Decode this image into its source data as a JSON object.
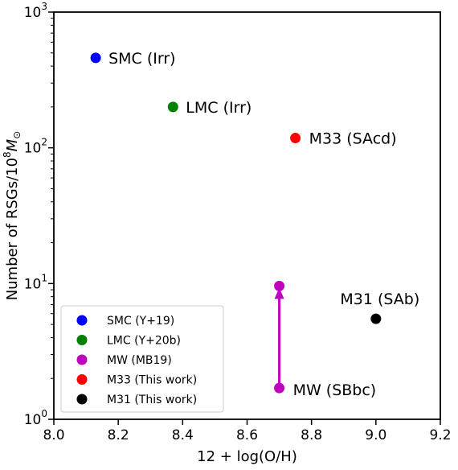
{
  "chart_data": {
    "type": "scatter",
    "xlabel": "12 + log(O/H)",
    "ylabel": "Number of RSGs/10^8 M_sun",
    "ylabel_parts": {
      "main": "Number of RSGs/10",
      "exp": "8",
      "unit": "M",
      "unit_sub": "⊙"
    },
    "xlim": [
      8.0,
      9.2
    ],
    "ylim": [
      1,
      1000
    ],
    "yscale": "log",
    "grid": false,
    "legend_position": "lower-left",
    "x_ticks": [
      "8.0",
      "8.2",
      "8.4",
      "8.6",
      "8.8",
      "9.0",
      "9.2"
    ],
    "y_ticks": [
      {
        "value": 1,
        "base": "10",
        "exp": "0"
      },
      {
        "value": 10,
        "base": "10",
        "exp": "1"
      },
      {
        "value": 100,
        "base": "10",
        "exp": "2"
      },
      {
        "value": 1000,
        "base": "10",
        "exp": "3"
      }
    ],
    "series": [
      {
        "name": "SMC (Y+19)",
        "color": "#0000ff",
        "points": [
          {
            "x": 8.13,
            "y": 460,
            "label": "SMC (Irr)"
          }
        ]
      },
      {
        "name": "LMC (Y+20b)",
        "color": "#008000",
        "points": [
          {
            "x": 8.37,
            "y": 200,
            "label": "LMC (Irr)"
          }
        ]
      },
      {
        "name": "MW (MB19)",
        "color": "#bf00bf",
        "points": [
          {
            "x": 8.7,
            "y": 9.6,
            "label": ""
          },
          {
            "x": 8.7,
            "y": 1.7,
            "label": "MW (SBbc)"
          }
        ]
      },
      {
        "name": "M33 (This work)",
        "color": "#ff0000",
        "points": [
          {
            "x": 8.75,
            "y": 118,
            "label": "M33 (SAcd)"
          }
        ]
      },
      {
        "name": "M31 (This work)",
        "color": "#000000",
        "points": [
          {
            "x": 9.0,
            "y": 5.5,
            "label": "M31 (SAb)"
          }
        ]
      }
    ],
    "annotations": [
      {
        "type": "arrow",
        "color": "#bf00bf",
        "x": 8.7,
        "from_y": 1.7,
        "to_y": 9.6
      }
    ]
  }
}
